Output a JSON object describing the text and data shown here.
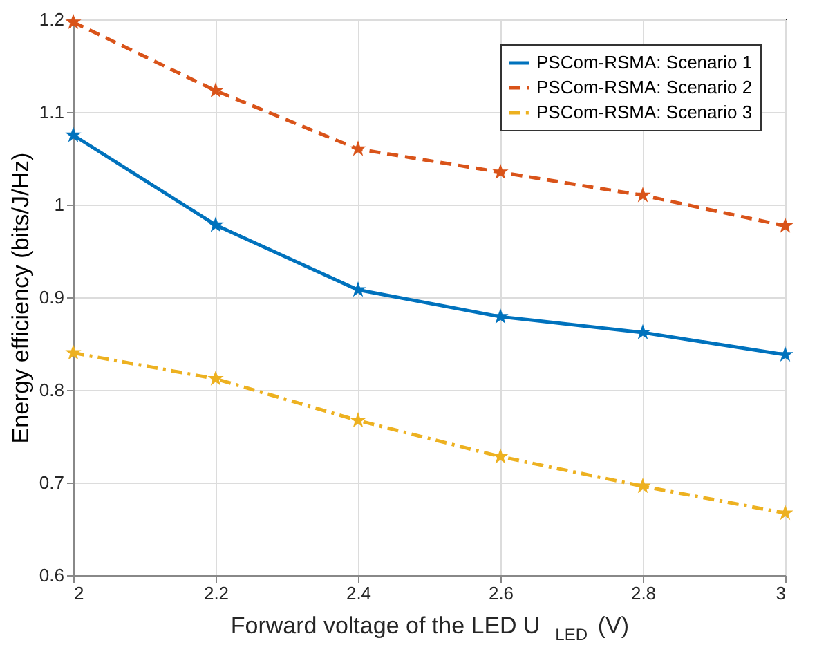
{
  "chart_data": {
    "type": "line",
    "xlabel": "Forward voltage of the LED U$_{LED}$ (V)",
    "ylabel": "Energy efficiency (bits/J/Hz)",
    "x": [
      2,
      2.2,
      2.4,
      2.6,
      2.8,
      3
    ],
    "series": [
      {
        "name": "PSCom-RSMA: Scenario 1",
        "color": "#0072bd",
        "line_style": "solid",
        "values": [
          1.075,
          0.978,
          0.908,
          0.879,
          0.862,
          0.838
        ]
      },
      {
        "name": "PSCom-RSMA: Scenario 2",
        "color": "#d95319",
        "line_style": "dashed",
        "values": [
          1.197,
          1.123,
          1.06,
          1.035,
          1.01,
          0.977
        ]
      },
      {
        "name": "PSCom-RSMA: Scenario 3",
        "color": "#edb120",
        "line_style": "dashdot",
        "values": [
          0.84,
          0.812,
          0.767,
          0.728,
          0.696,
          0.667
        ]
      }
    ],
    "xlim": [
      2,
      3
    ],
    "xticks": [
      {
        "value": 2,
        "label": "2"
      },
      2.2,
      2.4,
      2.6,
      2.8,
      {
        "value": 3,
        "label": "3"
      }
    ],
    "ylim": [
      0.6,
      1.2
    ],
    "yticks": [
      0.6,
      0.7,
      0.8,
      0.9,
      1,
      1.1,
      1.2
    ],
    "grid": true,
    "legend": "top right",
    "marker": "star"
  }
}
